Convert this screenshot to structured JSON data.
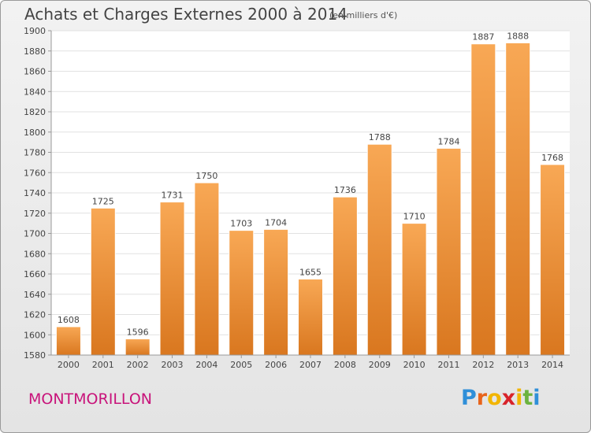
{
  "header": {
    "title": "Achats et Charges Externes 2000 à 2014",
    "unit_note": "(en milliers d'€)"
  },
  "footer": {
    "city": "MONTMORILLON",
    "logo_letters": [
      "P",
      "r",
      "o",
      "x",
      "i",
      "t",
      "i"
    ],
    "logo_colors": [
      "#2f8fd8",
      "#e8641b",
      "#f2b500",
      "#d8232a",
      "#f2b500",
      "#6cb33f",
      "#2f8fd8"
    ]
  },
  "chart_data": {
    "type": "bar",
    "categories": [
      "2000",
      "2001",
      "2002",
      "2003",
      "2004",
      "2005",
      "2006",
      "2007",
      "2008",
      "2009",
      "2010",
      "2011",
      "2012",
      "2013",
      "2014"
    ],
    "values": [
      1608,
      1725,
      1596,
      1731,
      1750,
      1703,
      1704,
      1655,
      1736,
      1788,
      1710,
      1784,
      1887,
      1888,
      1768
    ],
    "ylim": [
      1580,
      1900
    ],
    "yticks": [
      1580,
      1600,
      1620,
      1640,
      1660,
      1680,
      1700,
      1720,
      1740,
      1760,
      1780,
      1800,
      1820,
      1840,
      1860,
      1880,
      1900
    ],
    "grid": true,
    "bar_color_light": "#f8a855",
    "bar_color_dark": "#d9771f"
  }
}
